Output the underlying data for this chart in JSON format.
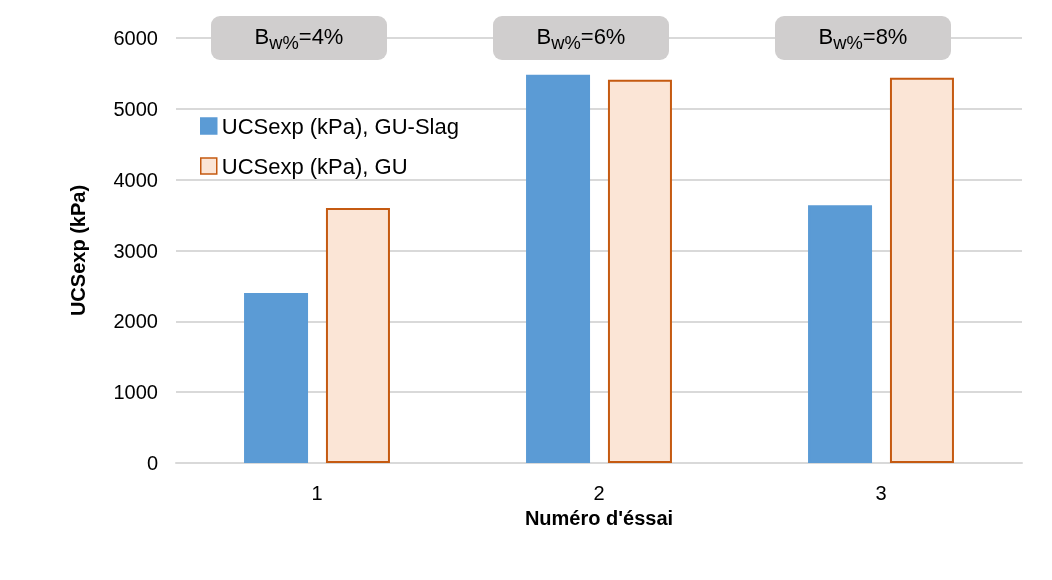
{
  "chart_data": {
    "type": "bar",
    "xlabel": "Numéro d'éssai",
    "ylabel": "UCSexp (kPa)",
    "categories": [
      "1",
      "2",
      "3"
    ],
    "series": [
      {
        "name": "UCSexp (kPa), GU-Slag",
        "color": "#5b9bd5",
        "values": [
          2400,
          5480,
          3640
        ]
      },
      {
        "name": "UCSexp (kPa), GU",
        "color": "#fbe5d6",
        "values": [
          3600,
          5410,
          5440
        ]
      }
    ],
    "ylim": [
      0,
      6000
    ],
    "yticks": [
      0,
      1000,
      2000,
      3000,
      4000,
      5000,
      6000
    ],
    "grid": "y",
    "legend": "top left",
    "annotations": [
      "B$_{w%}$=4%",
      "B$_{w%}$=6%",
      "B$_{w%}$=8%"
    ]
  }
}
